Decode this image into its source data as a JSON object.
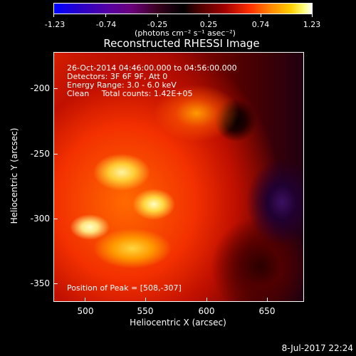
{
  "colorbar": {
    "ticks": [
      "-1.23",
      "-0.74",
      "-0.25",
      "0.25",
      "0.74",
      "1.23"
    ],
    "units": "(photons cm⁻² s⁻¹ asec⁻²)"
  },
  "plot": {
    "title": "Reconstructed RHESSI Image",
    "info_line1": "26-Oct-2014 04:46:00.000 to 04:56:00.000",
    "info_line2": "Detectors: 3F 6F 9F, Att 0",
    "info_line3": "Energy Range: 3.0 - 6.0 keV",
    "info_line4": "Clean     Total counts: 1.42E+05",
    "peak_text": "Position of Peak = [508,-307]"
  },
  "axes": {
    "x_title": "Heliocentric X (arcsec)",
    "y_title": "Heliocentric Y (arcsec)",
    "x_ticks": [
      "500",
      "550",
      "600",
      "650"
    ],
    "y_ticks": [
      "-200",
      "-250",
      "-300",
      "-350"
    ]
  },
  "footer": {
    "timestamp": "8-Jul-2017 22:24"
  }
}
